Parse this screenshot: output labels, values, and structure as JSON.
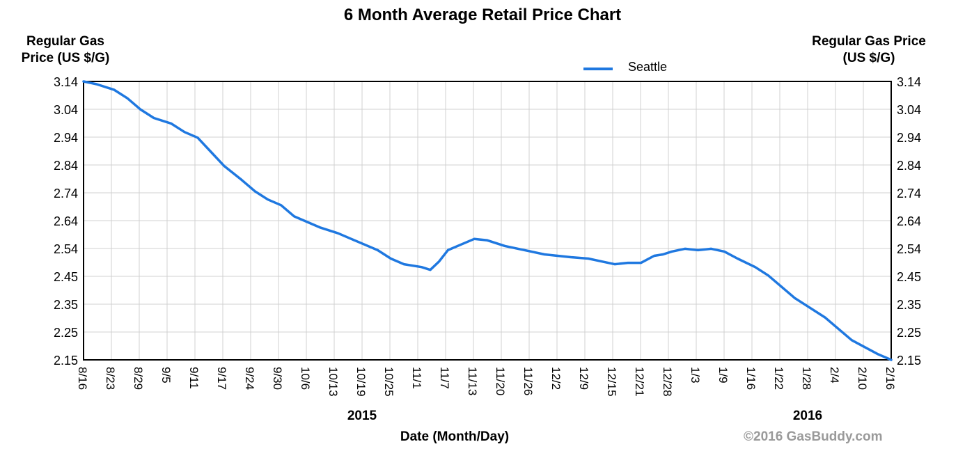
{
  "chart_data": {
    "type": "line",
    "title": "6 Month Average Retail Price Chart",
    "ylabel_left": "Regular Gas Price (US $/G)",
    "ylabel_right": "Regular Gas Price (US $/G)",
    "xlabel": "Date (Month/Day)",
    "y_ticks": [
      "3.14",
      "3.04",
      "2.94",
      "2.84",
      "2.74",
      "2.64",
      "2.54",
      "2.45",
      "2.35",
      "2.25",
      "2.15"
    ],
    "ylim": [
      2.15,
      3.14
    ],
    "x_ticks": [
      "8/16",
      "8/23",
      "8/29",
      "9/5",
      "9/11",
      "9/17",
      "9/24",
      "9/30",
      "10/6",
      "10/13",
      "10/19",
      "10/25",
      "11/1",
      "11/7",
      "11/13",
      "11/20",
      "11/26",
      "12/2",
      "12/9",
      "12/15",
      "12/21",
      "12/28",
      "1/3",
      "1/9",
      "1/16",
      "1/22",
      "1/28",
      "2/4",
      "2/10",
      "2/16"
    ],
    "year_labels": [
      {
        "text": "2015",
        "at": "10/19"
      },
      {
        "text": "2016",
        "at": "1/28"
      }
    ],
    "grid": true,
    "legend": "top-center",
    "series": [
      {
        "name": "Seattle",
        "color": "#1f78e0",
        "points": [
          {
            "x": "8/16",
            "y": 3.14
          },
          {
            "x": "8/19",
            "y": 3.13
          },
          {
            "x": "8/23",
            "y": 3.11
          },
          {
            "x": "8/26",
            "y": 3.08
          },
          {
            "x": "8/29",
            "y": 3.04
          },
          {
            "x": "9/1",
            "y": 3.01
          },
          {
            "x": "9/5",
            "y": 2.99
          },
          {
            "x": "9/8",
            "y": 2.96
          },
          {
            "x": "9/11",
            "y": 2.94
          },
          {
            "x": "9/14",
            "y": 2.89
          },
          {
            "x": "9/17",
            "y": 2.84
          },
          {
            "x": "9/21",
            "y": 2.79
          },
          {
            "x": "9/24",
            "y": 2.75
          },
          {
            "x": "9/27",
            "y": 2.72
          },
          {
            "x": "9/30",
            "y": 2.7
          },
          {
            "x": "10/3",
            "y": 2.66
          },
          {
            "x": "10/6",
            "y": 2.64
          },
          {
            "x": "10/9",
            "y": 2.62
          },
          {
            "x": "10/13",
            "y": 2.6
          },
          {
            "x": "10/16",
            "y": 2.58
          },
          {
            "x": "10/19",
            "y": 2.56
          },
          {
            "x": "10/22",
            "y": 2.54
          },
          {
            "x": "10/25",
            "y": 2.51
          },
          {
            "x": "10/28",
            "y": 2.49
          },
          {
            "x": "11/1",
            "y": 2.48
          },
          {
            "x": "11/3",
            "y": 2.47
          },
          {
            "x": "11/5",
            "y": 2.5
          },
          {
            "x": "11/7",
            "y": 2.54
          },
          {
            "x": "11/10",
            "y": 2.56
          },
          {
            "x": "11/13",
            "y": 2.58
          },
          {
            "x": "11/16",
            "y": 2.575
          },
          {
            "x": "11/20",
            "y": 2.555
          },
          {
            "x": "11/23",
            "y": 2.545
          },
          {
            "x": "11/26",
            "y": 2.535
          },
          {
            "x": "11/29",
            "y": 2.525
          },
          {
            "x": "12/2",
            "y": 2.52
          },
          {
            "x": "12/5",
            "y": 2.515
          },
          {
            "x": "12/9",
            "y": 2.51
          },
          {
            "x": "12/12",
            "y": 2.5
          },
          {
            "x": "12/15",
            "y": 2.49
          },
          {
            "x": "12/18",
            "y": 2.495
          },
          {
            "x": "12/21",
            "y": 2.495
          },
          {
            "x": "12/24",
            "y": 2.52
          },
          {
            "x": "12/26",
            "y": 2.525
          },
          {
            "x": "12/28",
            "y": 2.535
          },
          {
            "x": "12/31",
            "y": 2.545
          },
          {
            "x": "1/3",
            "y": 2.54
          },
          {
            "x": "1/6",
            "y": 2.545
          },
          {
            "x": "1/9",
            "y": 2.535
          },
          {
            "x": "1/12",
            "y": 2.51
          },
          {
            "x": "1/16",
            "y": 2.48
          },
          {
            "x": "1/19",
            "y": 2.45
          },
          {
            "x": "1/22",
            "y": 2.41
          },
          {
            "x": "1/25",
            "y": 2.37
          },
          {
            "x": "1/28",
            "y": 2.34
          },
          {
            "x": "2/1",
            "y": 2.3
          },
          {
            "x": "2/4",
            "y": 2.26
          },
          {
            "x": "2/7",
            "y": 2.22
          },
          {
            "x": "2/10",
            "y": 2.195
          },
          {
            "x": "2/13",
            "y": 2.17
          },
          {
            "x": "2/16",
            "y": 2.15
          }
        ]
      }
    ]
  },
  "copyright": "©2016 GasBuddy.com"
}
